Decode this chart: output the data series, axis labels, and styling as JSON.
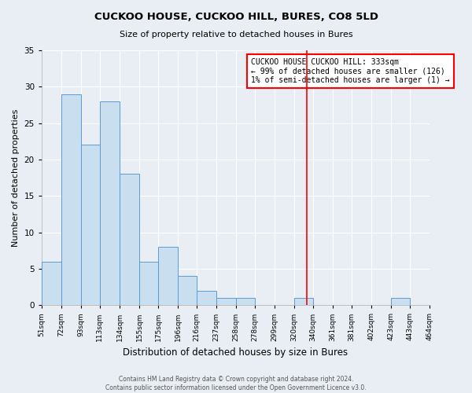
{
  "title": "CUCKOO HOUSE, CUCKOO HILL, BURES, CO8 5LD",
  "subtitle": "Size of property relative to detached houses in Bures",
  "xlabel": "Distribution of detached houses by size in Bures",
  "ylabel": "Number of detached properties",
  "bar_edges": [
    51,
    72,
    93,
    113,
    134,
    155,
    175,
    196,
    216,
    237,
    258,
    278,
    299,
    320,
    340,
    361,
    381,
    402,
    423,
    443,
    464
  ],
  "bar_heights": [
    6,
    29,
    22,
    28,
    18,
    6,
    8,
    4,
    2,
    1,
    1,
    0,
    0,
    1,
    0,
    0,
    0,
    0,
    1,
    0
  ],
  "bar_color": "#c9dff0",
  "bar_edgecolor": "#5b9bd5",
  "redline_x": 333,
  "ylim": [
    0,
    35
  ],
  "yticks": [
    0,
    5,
    10,
    15,
    20,
    25,
    30,
    35
  ],
  "annotation_text": "CUCKOO HOUSE CUCKOO HILL: 333sqm\n← 99% of detached houses are smaller (126)\n1% of semi-detached houses are larger (1) →",
  "footer_line1": "Contains HM Land Registry data © Crown copyright and database right 2024.",
  "footer_line2": "Contains public sector information licensed under the Open Government Licence v3.0.",
  "tick_labels": [
    "51sqm",
    "72sqm",
    "93sqm",
    "113sqm",
    "134sqm",
    "155sqm",
    "175sqm",
    "196sqm",
    "216sqm",
    "237sqm",
    "258sqm",
    "278sqm",
    "299sqm",
    "320sqm",
    "340sqm",
    "361sqm",
    "381sqm",
    "402sqm",
    "423sqm",
    "443sqm",
    "464sqm"
  ],
  "background_color": "#e8eef4",
  "grid_color": "#ffffff",
  "title_fontsize": 9.5,
  "subtitle_fontsize": 8,
  "ylabel_fontsize": 8,
  "xlabel_fontsize": 8.5,
  "tick_fontsize": 6.5,
  "ytick_fontsize": 7.5,
  "annotation_fontsize": 7,
  "footer_fontsize": 5.5
}
